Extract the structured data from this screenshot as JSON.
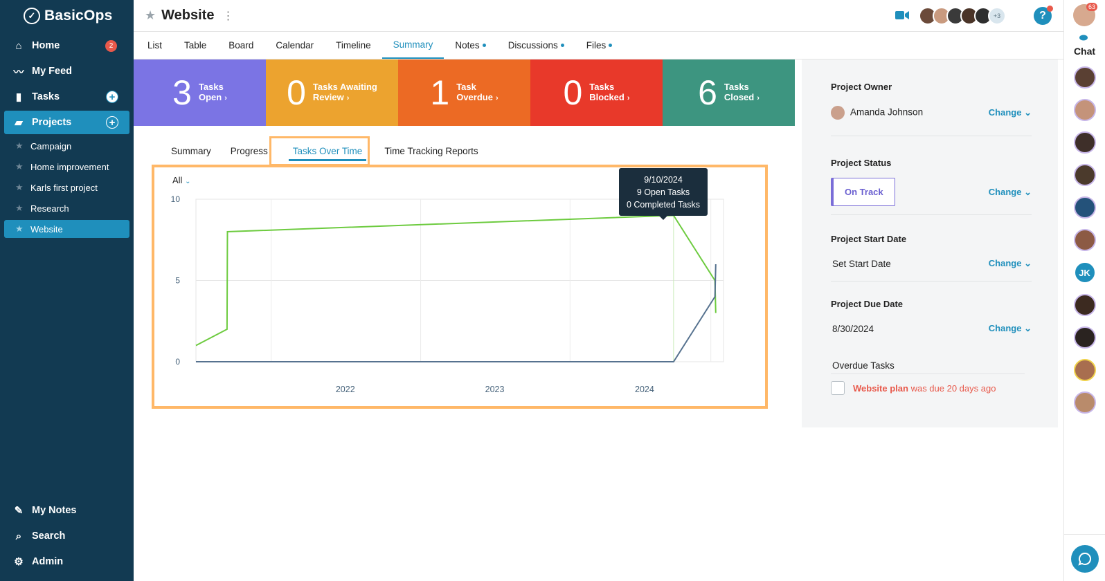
{
  "app": {
    "name": "BasicOps"
  },
  "sidebar": {
    "nav": [
      {
        "label": "Home",
        "icon": "home-icon",
        "badge": "2"
      },
      {
        "label": "My Feed",
        "icon": "feed-icon"
      },
      {
        "label": "Tasks",
        "icon": "clipboard-icon"
      },
      {
        "label": "Projects",
        "icon": "folder-icon"
      }
    ],
    "projects": [
      "Campaign",
      "Home improvement",
      "Karls first project",
      "Research",
      "Website"
    ],
    "bottom": [
      {
        "label": "My Notes",
        "icon": "pencil-icon"
      },
      {
        "label": "Search",
        "icon": "search-icon"
      },
      {
        "label": "Admin",
        "icon": "gear-icon"
      }
    ]
  },
  "header": {
    "title": "Website",
    "avatars_more": "+3"
  },
  "tabs": [
    "List",
    "Table",
    "Board",
    "Calendar",
    "Timeline",
    "Summary",
    "Notes",
    "Discussions",
    "Files"
  ],
  "cards": [
    {
      "num": "3",
      "line1": "Tasks",
      "line2": "Open",
      "color": "#7b74e4"
    },
    {
      "num": "0",
      "line1": "Tasks Awaiting",
      "line2": "Review",
      "color": "#eca32f"
    },
    {
      "num": "1",
      "line1": "Task",
      "line2": "Overdue",
      "color": "#ec6a24"
    },
    {
      "num": "0",
      "line1": "Tasks",
      "line2": "Blocked",
      "color": "#e8392a"
    },
    {
      "num": "6",
      "line1": "Tasks",
      "line2": "Closed",
      "color": "#3d9580"
    }
  ],
  "subtabs": [
    "Summary",
    "Progress",
    "Tasks Over Time",
    "Time Tracking Reports"
  ],
  "filter": {
    "label": "All"
  },
  "chart_data": {
    "type": "line",
    "x_tick_labels": [
      "2022",
      "2023",
      "2024"
    ],
    "y_ticks": [
      0,
      5,
      10
    ],
    "ylim": [
      0,
      10
    ],
    "grid": true,
    "series": [
      {
        "color": "#6dcb3f",
        "points": [
          [
            "2021-07-01",
            1
          ],
          [
            "2021-09-15",
            2
          ],
          [
            "2021-09-16",
            8
          ],
          [
            "2024-09-10",
            9
          ],
          [
            "2024-12-20",
            5
          ],
          [
            "2024-12-22",
            3
          ]
        ]
      },
      {
        "color": "#56728f",
        "points": [
          [
            "2021-07-01",
            0
          ],
          [
            "2024-09-10",
            0
          ],
          [
            "2024-12-20",
            4
          ],
          [
            "2024-12-22",
            6
          ]
        ]
      }
    ],
    "tooltip": {
      "date": "9/10/2024",
      "line1": "9 Open Tasks",
      "line2": "0 Completed Tasks"
    }
  },
  "panel": {
    "owner_label": "Project Owner",
    "owner_name": "Amanda Johnson",
    "status_label": "Project Status",
    "status_value": "On Track",
    "start_label": "Project Start Date",
    "start_value": "Set Start Date",
    "due_label": "Project Due Date",
    "due_value": "8/30/2024",
    "change_label": "Change",
    "overdue_label": "Overdue Tasks",
    "overdue_task": "Website plan",
    "overdue_text": "was due 20 days ago"
  },
  "chat": {
    "label": "Chat",
    "badge": "63",
    "initials": "JK"
  }
}
